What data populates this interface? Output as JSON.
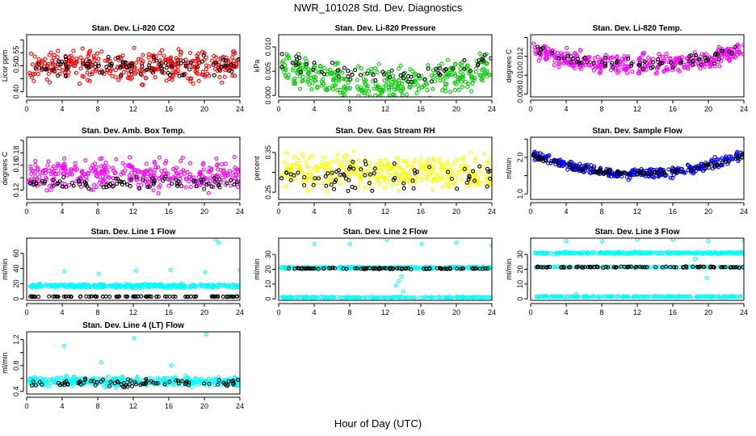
{
  "page": {
    "title": "NWR_101028 Std. Dev. Diagnostics",
    "xlabel": "Hour of Day (UTC)"
  },
  "colors": {
    "red": "#ff0000",
    "green": "#00cc00",
    "magenta": "#ff00ff",
    "yellow": "#ffff00",
    "blue": "#0000ff",
    "cyan": "#00ffff",
    "black": "#000000"
  },
  "chart_data": [
    {
      "type": "scatter",
      "title": "Stan. Dev. Li-820 CO2",
      "ylabel": "Licor ppm",
      "xlim": [
        0,
        24
      ],
      "ylim": [
        0.38,
        0.62
      ],
      "xticks": [
        0,
        4,
        8,
        12,
        16,
        20,
        24
      ],
      "yticks": [
        0.4,
        0.45,
        0.5,
        0.55,
        0.6
      ],
      "ytick_labels": [
        "0.40",
        "",
        "0.50",
        "0.55",
        ""
      ],
      "color": "red",
      "series": [
        {
          "name": "raw",
          "profile": "flat",
          "level": 0.5,
          "spread": 0.05,
          "n": 360
        },
        {
          "name": "hourly-mean",
          "color": "black",
          "profile": "flat",
          "level": 0.5,
          "spread": 0.03,
          "n": 90
        }
      ]
    },
    {
      "type": "scatter",
      "title": "Stan. Dev. Li-820 Pressure",
      "ylabel": "kPa",
      "xlim": [
        0,
        24
      ],
      "ylim": [
        -0.0003,
        0.0125
      ],
      "xticks": [
        0,
        4,
        8,
        12,
        16,
        20,
        24
      ],
      "yticks": [
        0.0,
        0.005,
        0.01
      ],
      "ytick_labels": [
        "0.000",
        "0.005",
        "0.010"
      ],
      "color": "green",
      "series": [
        {
          "name": "raw",
          "profile": "bowl",
          "level": 0.006,
          "depth": 0.004,
          "spread": 0.003,
          "n": 360
        },
        {
          "name": "hourly-mean",
          "color": "black",
          "profile": "bowl",
          "level": 0.0075,
          "depth": 0.0035,
          "spread": 0.0015,
          "n": 60
        }
      ]
    },
    {
      "type": "scatter",
      "title": "Stan. Dev. Li-820 Temp.",
      "ylabel": "degrees C",
      "xlim": [
        0,
        24
      ],
      "ylim": [
        0.0077,
        0.0143
      ],
      "xticks": [
        0,
        4,
        8,
        12,
        16,
        20,
        24
      ],
      "yticks": [
        0.008,
        0.01,
        0.012,
        0.014
      ],
      "ytick_labels": [
        "0.008",
        "0.010",
        "0.012",
        ""
      ],
      "color": "magenta",
      "series": [
        {
          "name": "raw",
          "profile": "bowl",
          "level": 0.0128,
          "depth": 0.0018,
          "spread": 0.0009,
          "n": 360
        },
        {
          "name": "hourly-mean",
          "color": "black",
          "profile": "bowl",
          "level": 0.0128,
          "depth": 0.0016,
          "spread": 0.0006,
          "n": 70
        }
      ]
    },
    {
      "type": "scatter",
      "title": "Stan. Dev. Amb. Box Temp.",
      "ylabel": "degrees C",
      "xlim": [
        0,
        24
      ],
      "ylim": [
        0.105,
        0.205
      ],
      "xticks": [
        0,
        4,
        8,
        12,
        16,
        20,
        24
      ],
      "yticks": [
        0.12,
        0.14,
        0.16,
        0.18,
        0.2
      ],
      "ytick_labels": [
        "0.12",
        "",
        "0.16",
        "0.18",
        ""
      ],
      "color": "magenta",
      "series": [
        {
          "name": "raw",
          "profile": "flat",
          "level": 0.145,
          "spread": 0.02,
          "n": 360
        },
        {
          "name": "hourly-mean",
          "color": "black",
          "profile": "flat",
          "level": 0.132,
          "spread": 0.008,
          "n": 80
        }
      ]
    },
    {
      "type": "scatter",
      "title": "Stan. Dev. Gas Stream RH",
      "ylabel": "percent",
      "xlim": [
        0,
        24
      ],
      "ylim": [
        0.232,
        0.388
      ],
      "xticks": [
        0,
        4,
        8,
        12,
        16,
        20,
        24
      ],
      "yticks": [
        0.25,
        0.3,
        0.35
      ],
      "ytick_labels": [
        "0.25",
        "",
        "0.35"
      ],
      "color": "yellow",
      "series": [
        {
          "name": "raw",
          "profile": "flat",
          "level": 0.3,
          "spread": 0.035,
          "n": 360
        },
        {
          "name": "hourly-mean",
          "color": "black",
          "profile": "flat",
          "level": 0.29,
          "spread": 0.03,
          "n": 70
        }
      ]
    },
    {
      "type": "scatter",
      "title": "Stan. Dev. Sample Flow",
      "ylabel": "ml/min",
      "xlim": [
        0,
        24
      ],
      "ylim": [
        0.85,
        2.55
      ],
      "xticks": [
        0,
        4,
        8,
        12,
        16,
        20,
        24
      ],
      "yticks": [
        1.0,
        1.5,
        2.0,
        2.5
      ],
      "ytick_labels": [
        "1.0",
        "",
        "2.0",
        ""
      ],
      "color": "blue",
      "series": [
        {
          "name": "raw",
          "profile": "bowl",
          "level": 2.1,
          "depth": 0.55,
          "spread": 0.12,
          "n": 360
        },
        {
          "name": "hourly-mean",
          "color": "black",
          "profile": "bowl",
          "level": 2.05,
          "depth": 0.5,
          "spread": 0.06,
          "n": 90
        }
      ]
    },
    {
      "type": "scatter",
      "title": "Stan. Dev. Line 1 Flow",
      "ylabel": "ml/min",
      "xlim": [
        0,
        24
      ],
      "ylim": [
        -2,
        80
      ],
      "xticks": [
        0,
        4,
        8,
        12,
        16,
        20,
        24
      ],
      "yticks": [
        0,
        20,
        40,
        60
      ],
      "ytick_labels": [
        "0",
        "20",
        "40",
        "60"
      ],
      "color": "cyan",
      "series": [
        {
          "name": "raw",
          "profile": "flat",
          "level": 17,
          "spread": 2,
          "n": 360
        },
        {
          "name": "hourly-mean",
          "color": "black",
          "profile": "flat",
          "level": 3,
          "spread": 0.3,
          "n": 90
        },
        {
          "name": "outliers",
          "points": [
            [
              4.2,
              36
            ],
            [
              8.1,
              33
            ],
            [
              12.3,
              37
            ],
            [
              16.2,
              38
            ],
            [
              20.1,
              35
            ],
            [
              21.3,
              78
            ],
            [
              21.6,
              74
            ],
            [
              24.0,
              38
            ]
          ]
        }
      ]
    },
    {
      "type": "scatter",
      "title": "Stan. Dev. Line 2 Flow",
      "ylabel": "ml/min",
      "xlim": [
        0,
        24
      ],
      "ylim": [
        -1,
        41
      ],
      "xticks": [
        0,
        4,
        8,
        12,
        16,
        20,
        24
      ],
      "yticks": [
        0,
        10,
        20,
        30
      ],
      "ytick_labels": [
        "0",
        "10",
        "20",
        "30"
      ],
      "color": "cyan",
      "series": [
        {
          "name": "raw-upper",
          "profile": "flat",
          "level": 21,
          "spread": 0.6,
          "n": 300
        },
        {
          "name": "raw-lower",
          "profile": "flat",
          "level": 1,
          "spread": 0.3,
          "n": 200
        },
        {
          "name": "hourly-mean",
          "color": "black",
          "profile": "flat",
          "level": 20.5,
          "spread": 0.4,
          "n": 90
        },
        {
          "name": "outliers",
          "points": [
            [
              4.0,
              37
            ],
            [
              8.0,
              37
            ],
            [
              12.2,
              40
            ],
            [
              16.1,
              37
            ],
            [
              20.0,
              38
            ],
            [
              24.0,
              36
            ],
            [
              13.2,
              9
            ],
            [
              13.5,
              12
            ],
            [
              13.8,
              15
            ],
            [
              14.0,
              5
            ]
          ]
        }
      ]
    },
    {
      "type": "scatter",
      "title": "Stan. Dev. Line 3 Flow",
      "ylabel": "ml/min",
      "xlim": [
        0,
        24
      ],
      "ylim": [
        -1,
        41
      ],
      "xticks": [
        0,
        4,
        8,
        12,
        16,
        20,
        24
      ],
      "yticks": [
        0,
        10,
        20,
        30
      ],
      "ytick_labels": [
        "0",
        "10",
        "20",
        "30"
      ],
      "color": "cyan",
      "series": [
        {
          "name": "raw-upper",
          "profile": "flat",
          "level": 31,
          "spread": 0.5,
          "n": 300
        },
        {
          "name": "raw-mid",
          "profile": "flat",
          "level": 21.5,
          "spread": 0.3,
          "n": 150
        },
        {
          "name": "raw-lower",
          "profile": "flat",
          "level": 1.5,
          "spread": 0.3,
          "n": 200
        },
        {
          "name": "hourly-mean",
          "color": "black",
          "profile": "flat",
          "level": 21.5,
          "spread": 0.4,
          "n": 90
        },
        {
          "name": "outliers",
          "points": [
            [
              4.0,
              39
            ],
            [
              8.0,
              39
            ],
            [
              12.0,
              40
            ],
            [
              16.0,
              40
            ],
            [
              20.0,
              39
            ],
            [
              24.0,
              39
            ],
            [
              5.1,
              3
            ],
            [
              19.8,
              14
            ],
            [
              18.5,
              27
            ]
          ]
        }
      ]
    },
    {
      "type": "scatter",
      "title": "Stan. Dev. Line 4 (LT) Flow",
      "ylabel": "ml/min",
      "xlim": [
        0,
        24
      ],
      "ylim": [
        0.36,
        1.32
      ],
      "xticks": [
        0,
        4,
        8,
        12,
        16,
        20,
        24
      ],
      "yticks": [
        0.4,
        0.6,
        0.8,
        1.0,
        1.2
      ],
      "ytick_labels": [
        "0.4",
        "",
        "0.8",
        "",
        "1.2"
      ],
      "color": "cyan",
      "series": [
        {
          "name": "raw",
          "profile": "flat",
          "level": 0.55,
          "spread": 0.06,
          "n": 360
        },
        {
          "name": "hourly-mean",
          "color": "black",
          "profile": "flat",
          "level": 0.53,
          "spread": 0.05,
          "n": 80
        },
        {
          "name": "outliers",
          "points": [
            [
              4.2,
              1.1
            ],
            [
              12.1,
              1.22
            ],
            [
              20.2,
              1.28
            ],
            [
              8.4,
              0.85
            ],
            [
              16.3,
              0.8
            ]
          ]
        }
      ]
    }
  ]
}
